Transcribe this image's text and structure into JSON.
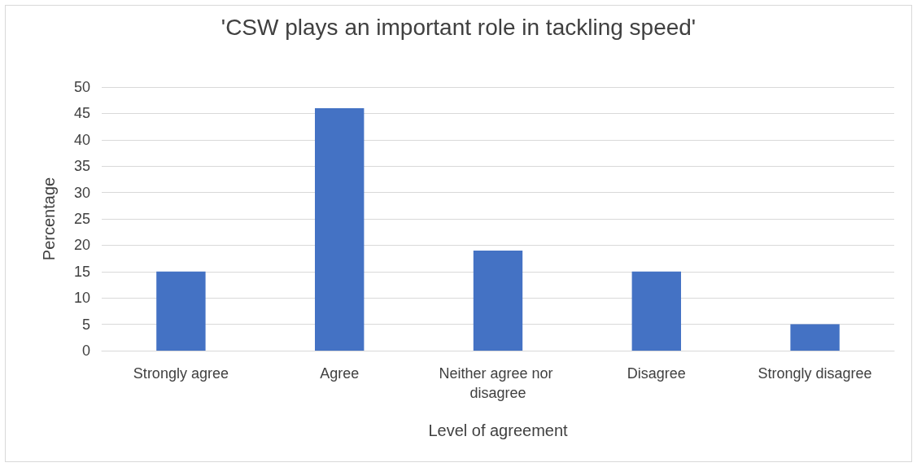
{
  "chart_data": {
    "type": "bar",
    "title": "'CSW plays an important role in tackling speed'",
    "xlabel": "Level of agreement",
    "ylabel": "Percentage",
    "categories": [
      "Strongly agree",
      "Agree",
      "Neither agree nor disagree",
      "Disagree",
      "Strongly disagree"
    ],
    "values": [
      15,
      46,
      19,
      15,
      5
    ],
    "color": "#4472c4",
    "ylim": [
      0,
      50
    ],
    "yticks": [
      0,
      5,
      10,
      15,
      20,
      25,
      30,
      35,
      40,
      45,
      50
    ],
    "grid": "y"
  }
}
